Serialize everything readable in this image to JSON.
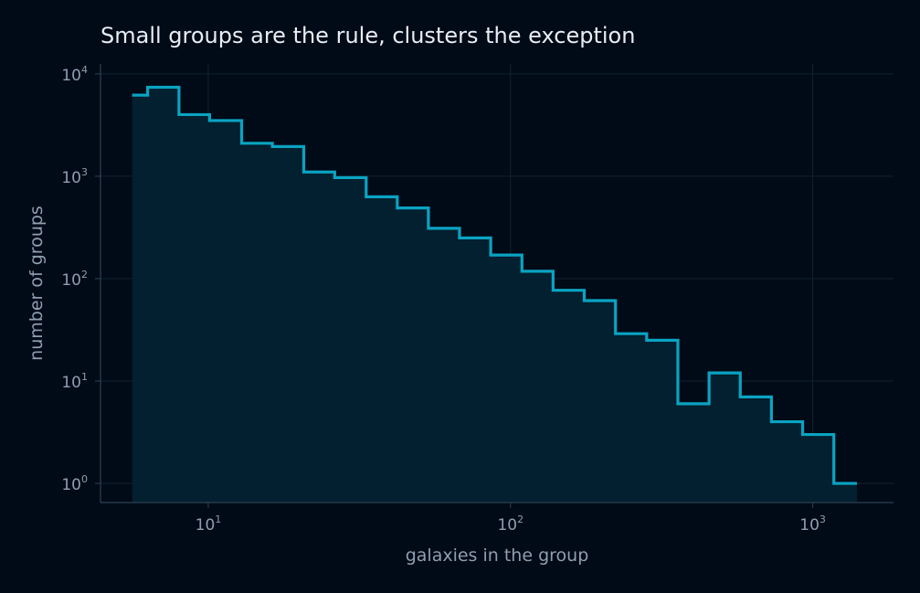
{
  "chart_data": {
    "type": "area",
    "title": "Small groups are the rule, clusters the exception",
    "xlabel": "galaxies in the group",
    "ylabel": "number of groups",
    "x_scale": "log",
    "y_scale": "log",
    "xlim": [
      4.4,
      1850
    ],
    "ylim": [
      0.65,
      12500
    ],
    "x_ticks": [
      {
        "base": "10",
        "exp": "1",
        "value": 10
      },
      {
        "base": "10",
        "exp": "2",
        "value": 100
      },
      {
        "base": "10",
        "exp": "3",
        "value": 1000
      }
    ],
    "y_ticks": [
      {
        "base": "10",
        "exp": "0",
        "value": 1
      },
      {
        "base": "10",
        "exp": "1",
        "value": 10
      },
      {
        "base": "10",
        "exp": "2",
        "value": 100
      },
      {
        "base": "10",
        "exp": "3",
        "value": 1000
      },
      {
        "base": "10",
        "exp": "4",
        "value": 10000
      }
    ],
    "grid": true,
    "legend": "none",
    "colors": {
      "line": "#0aa3c2",
      "fill": "#02202f",
      "background": "#010a17"
    },
    "bin_edges": [
      5.6,
      6.3,
      8.0,
      10.1,
      12.9,
      16.3,
      20.7,
      26.2,
      33.3,
      42.2,
      53.5,
      67.8,
      86.0,
      109.1,
      138.3,
      175.4,
      222.5,
      282.2,
      357.9,
      453.9,
      575.6,
      730.0,
      925.9,
      1174.2,
      1400
    ],
    "counts": [
      6200,
      7400,
      4000,
      3500,
      2100,
      1950,
      1100,
      970,
      630,
      490,
      310,
      250,
      170,
      118,
      77,
      61,
      29,
      25,
      6,
      12,
      7,
      4,
      3,
      1
    ]
  }
}
